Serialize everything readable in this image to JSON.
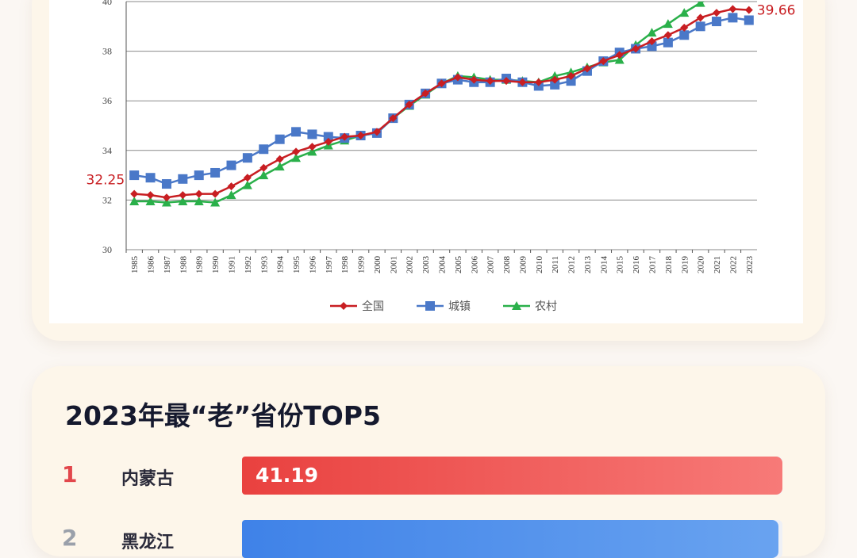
{
  "chart_data": {
    "type": "line",
    "x": [
      "1985",
      "1986",
      "1987",
      "1988",
      "1989",
      "1990",
      "1991",
      "1992",
      "1993",
      "1994",
      "1995",
      "1996",
      "1997",
      "1998",
      "1999",
      "2000",
      "2001",
      "2002",
      "2003",
      "2004",
      "2005",
      "2006",
      "2007",
      "2008",
      "2009",
      "2010",
      "2011",
      "2012",
      "2013",
      "2014",
      "2015",
      "2016",
      "2017",
      "2018",
      "2019",
      "2020",
      "2021",
      "2022",
      "2023"
    ],
    "yticks": [
      "30",
      "32",
      "34",
      "36",
      "38",
      "40"
    ],
    "ylim": [
      30,
      40
    ],
    "grid": true,
    "legend_position": "bottom",
    "series": [
      {
        "name": "全国",
        "color": "#c81e22",
        "marker": "diamond",
        "values": [
          32.25,
          32.2,
          32.1,
          32.2,
          32.25,
          32.25,
          32.55,
          32.9,
          33.3,
          33.65,
          33.95,
          34.15,
          34.35,
          34.55,
          34.6,
          34.75,
          35.3,
          35.85,
          36.3,
          36.7,
          36.95,
          36.85,
          36.8,
          36.8,
          36.75,
          36.75,
          36.85,
          37.0,
          37.3,
          37.6,
          37.85,
          38.1,
          38.4,
          38.65,
          38.95,
          39.35,
          39.55,
          39.7,
          39.66
        ]
      },
      {
        "name": "城镇",
        "color": "#4a78c8",
        "marker": "square",
        "values": [
          33.0,
          32.9,
          32.65,
          32.85,
          33.0,
          33.1,
          33.4,
          33.7,
          34.05,
          34.45,
          34.75,
          34.65,
          34.55,
          34.5,
          34.6,
          34.7,
          35.3,
          35.85,
          36.3,
          36.7,
          36.85,
          36.75,
          36.75,
          36.9,
          36.75,
          36.6,
          36.65,
          36.8,
          37.2,
          37.6,
          37.95,
          38.1,
          38.2,
          38.35,
          38.65,
          39.0,
          39.2,
          39.35,
          39.25
        ]
      },
      {
        "name": "农村",
        "color": "#2ab04a",
        "marker": "triangle",
        "values": [
          31.95,
          31.95,
          31.9,
          31.95,
          31.95,
          31.9,
          32.2,
          32.6,
          33.0,
          33.35,
          33.7,
          33.95,
          34.2,
          34.4,
          34.6,
          34.7,
          35.3,
          35.8,
          36.25,
          36.7,
          37.0,
          36.95,
          36.85,
          36.85,
          36.8,
          36.75,
          37.0,
          37.15,
          37.35,
          37.55,
          37.65,
          38.25,
          38.75,
          39.1,
          39.55,
          39.95,
          40.3,
          40.55,
          40.7
        ]
      }
    ],
    "annotations": {
      "start": "32.25",
      "end": "39.66"
    }
  },
  "ranking": {
    "title": "2023年最“老”省份TOP5",
    "max": 41.19,
    "items": [
      {
        "rank": "1",
        "name": "内蒙古",
        "value": "41.19",
        "color": "red"
      },
      {
        "rank": "2",
        "name": "黑龙江",
        "value": "",
        "color": "blue"
      }
    ]
  }
}
